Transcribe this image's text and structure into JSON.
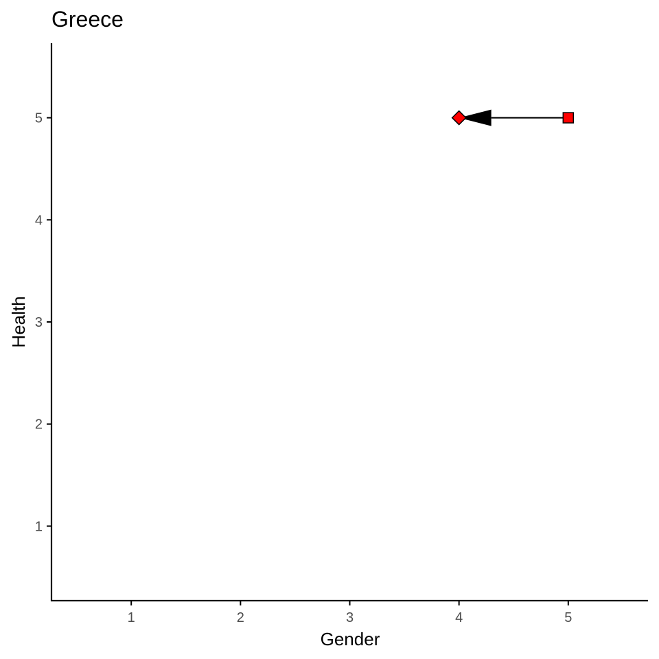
{
  "chart_data": {
    "type": "scatter",
    "title": "Greece",
    "xlabel": "Gender",
    "ylabel": "Health",
    "xlim": [
      0.27,
      5.73
    ],
    "ylim": [
      0.27,
      5.73
    ],
    "xticks": [
      1,
      2,
      3,
      4,
      5
    ],
    "yticks": [
      1,
      2,
      3,
      4,
      5
    ],
    "grid": false,
    "points": [
      {
        "shape": "square",
        "x": 5,
        "y": 5,
        "fill": "#ff0000"
      },
      {
        "shape": "diamond",
        "x": 4,
        "y": 5,
        "fill": "#ff0000"
      }
    ],
    "arrow": {
      "from": [
        5,
        5
      ],
      "to": [
        4,
        5
      ],
      "color": "#000000"
    }
  }
}
